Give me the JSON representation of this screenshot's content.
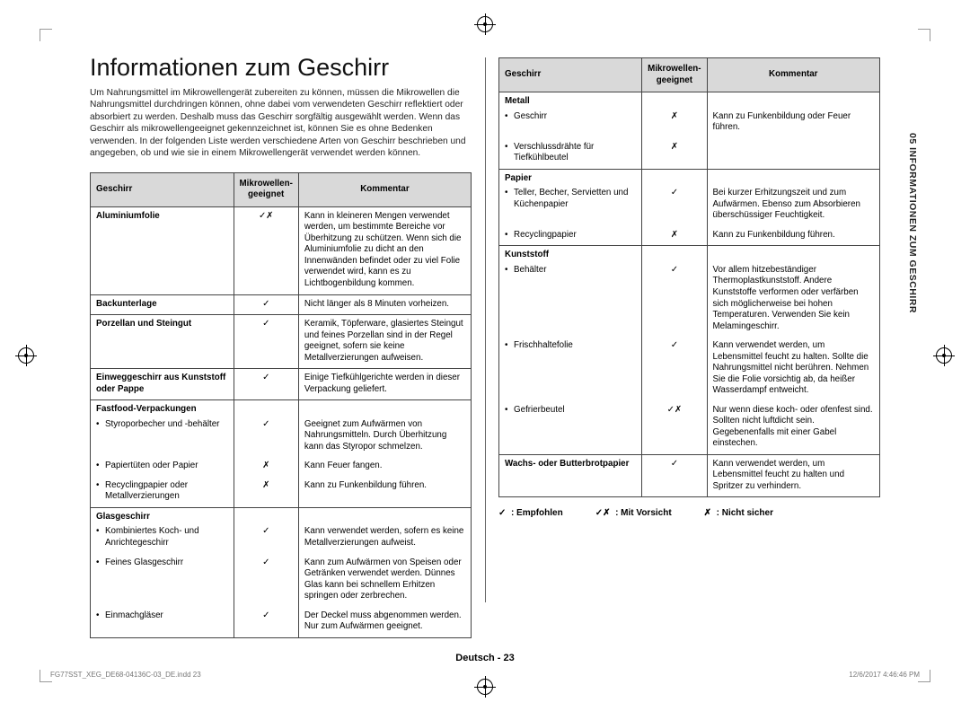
{
  "sideTab": "05  INFORMATIONEN ZUM GESCHIRR",
  "heading": "Informationen zum Geschirr",
  "intro": "Um Nahrungsmittel im Mikrowellengerät zubereiten zu können, müssen die Mikrowellen die Nahrungsmittel durchdringen können, ohne dabei vom verwendeten Geschirr reflektiert oder absorbiert zu werden. Deshalb muss das Geschirr sorgfältig ausgewählt werden. Wenn das Geschirr als mikrowellengeeignet gekennzeichnet ist, können Sie es ohne Bedenken verwenden. In der folgenden Liste werden verschiedene Arten von Geschirr beschrieben und angegeben, ob und wie sie in einem Mikrowellengerät verwendet werden können.",
  "headers": {
    "c1": "Geschirr",
    "c2": "Mikrowellen-geeignet",
    "c3": "Kommentar"
  },
  "symbols": {
    "yes": "✓",
    "caution": "✓✗",
    "no": "✗"
  },
  "leftRows": [
    {
      "type": "plain",
      "c1": "Aluminiumfolie",
      "bold": true,
      "c2": "caution",
      "c3": "Kann in kleineren Mengen verwendet werden, um bestimmte Bereiche vor Überhitzung zu schützen. Wenn sich die Aluminiumfolie zu dicht an den Innenwänden befindet oder zu viel Folie verwendet wird, kann es zu Lichtbogenbildung kommen."
    },
    {
      "type": "plain",
      "c1": "Backunterlage",
      "bold": true,
      "c2": "yes",
      "c3": "Nicht länger als 8 Minuten vorheizen."
    },
    {
      "type": "plain",
      "c1": "Porzellan und Steingut",
      "bold": true,
      "c2": "yes",
      "c3": "Keramik, Töpferware, glasiertes Steingut und feines Porzellan sind in der Regel geeignet, sofern sie keine Metallverzierungen aufweisen."
    },
    {
      "type": "plain",
      "c1": "Einweggeschirr aus Kunststoff oder Pappe",
      "bold": true,
      "c2": "yes",
      "c3": "Einige Tiefkühlgerichte werden in dieser Verpackung geliefert."
    },
    {
      "type": "section",
      "c1": "Fastfood-Verpackungen"
    },
    {
      "type": "sub",
      "c1": "Styroporbecher und -behälter",
      "c2": "yes",
      "c3": "Geeignet zum Aufwärmen von Nahrungsmitteln. Durch Überhitzung kann das Styropor schmelzen."
    },
    {
      "type": "sub",
      "c1": "Papiertüten oder Papier",
      "c2": "no",
      "c3": "Kann Feuer fangen."
    },
    {
      "type": "sub",
      "last": true,
      "c1": "Recyclingpapier oder Metallverzierungen",
      "c2": "no",
      "c3": "Kann zu Funkenbildung führen."
    },
    {
      "type": "section",
      "c1": "Glasgeschirr"
    },
    {
      "type": "sub",
      "c1": "Kombiniertes Koch- und Anrichtegeschirr",
      "c2": "yes",
      "c3": "Kann verwendet werden, sofern es keine Metallverzierungen aufweist."
    },
    {
      "type": "sub",
      "c1": "Feines Glasgeschirr",
      "c2": "yes",
      "c3": "Kann zum Aufwärmen von Speisen oder Getränken verwendet werden. Dünnes Glas kann bei schnellem Erhitzen springen oder zerbrechen."
    },
    {
      "type": "sub",
      "last": true,
      "c1": "Einmachgläser",
      "c2": "yes",
      "c3": "Der Deckel muss abgenommen werden. Nur zum Aufwärmen geeignet."
    }
  ],
  "rightRows": [
    {
      "type": "section",
      "c1": "Metall"
    },
    {
      "type": "sub",
      "c1": "Geschirr",
      "c2": "no",
      "c3": "Kann zu Funkenbildung oder Feuer führen."
    },
    {
      "type": "sub",
      "last": true,
      "c1": "Verschlussdrähte für Tiefkühlbeutel",
      "c2": "no",
      "c3": ""
    },
    {
      "type": "section",
      "c1": "Papier"
    },
    {
      "type": "sub",
      "c1": "Teller, Becher, Servietten und Küchenpapier",
      "c2": "yes",
      "c3": "Bei kurzer Erhitzungszeit und zum Aufwärmen. Ebenso zum Absorbieren überschüssiger Feuchtigkeit."
    },
    {
      "type": "sub",
      "last": true,
      "c1": "Recyclingpapier",
      "c2": "no",
      "c3": "Kann zu Funkenbildung führen."
    },
    {
      "type": "section",
      "c1": "Kunststoff"
    },
    {
      "type": "sub",
      "c1": "Behälter",
      "c2": "yes",
      "c3": "Vor allem hitzebeständiger Thermoplastkunststoff. Andere Kunststoffe verformen oder verfärben sich möglicherweise bei hohen Temperaturen. Verwenden Sie kein Melamingeschirr."
    },
    {
      "type": "sub",
      "c1": "Frischhaltefolie",
      "c2": "yes",
      "c3": "Kann verwendet werden, um Lebensmittel feucht zu halten. Sollte die Nahrungsmittel nicht berühren. Nehmen Sie die Folie vorsichtig ab, da heißer Wasserdampf entweicht."
    },
    {
      "type": "sub",
      "last": true,
      "c1": "Gefrierbeutel",
      "c2": "caution",
      "c3": "Nur wenn diese koch- oder ofenfest sind. Sollten nicht luftdicht sein. Gegebenenfalls mit einer Gabel einstechen."
    },
    {
      "type": "plain",
      "c1": "Wachs- oder Butterbrotpapier",
      "bold": true,
      "c2": "yes",
      "c3": "Kann verwendet werden, um Lebensmittel feucht zu halten und Spritzer zu verhindern."
    }
  ],
  "legend": {
    "rec": ": Empfohlen",
    "caution": ": Mit Vorsicht",
    "unsafe": ": Nicht sicher"
  },
  "pageFooter": "Deutsch - 23",
  "printLeft": "FG77SST_XEG_DE68-04136C-03_DE.indd   23",
  "printRight": "12/6/2017   4:46:46 PM"
}
